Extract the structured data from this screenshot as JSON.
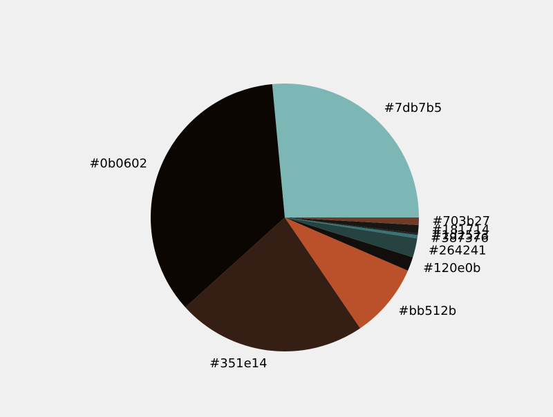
{
  "chart_data": {
    "type": "pie",
    "start_angle_deg": 0,
    "direction": "counterclockwise",
    "slices": [
      {
        "label": "#7db7b5",
        "value": 26.5,
        "color": "#7db7b5"
      },
      {
        "label": "#0b0602",
        "value": 35.2,
        "color": "#0b0602"
      },
      {
        "label": "#351e14",
        "value": 22.8,
        "color": "#351e14"
      },
      {
        "label": "#bb512b",
        "value": 9.0,
        "color": "#bb512b"
      },
      {
        "label": "#120e0b",
        "value": 1.7,
        "color": "#120e0b"
      },
      {
        "label": "#264241",
        "value": 2.3,
        "color": "#264241"
      },
      {
        "label": "#387376",
        "value": 0.4,
        "color": "#387376"
      },
      {
        "label": "#1d2523",
        "value": 0.2,
        "color": "#1d2523"
      },
      {
        "label": "#181714",
        "value": 1.0,
        "color": "#181714"
      },
      {
        "label": "#703b27",
        "value": 0.9,
        "color": "#703b27"
      }
    ]
  }
}
